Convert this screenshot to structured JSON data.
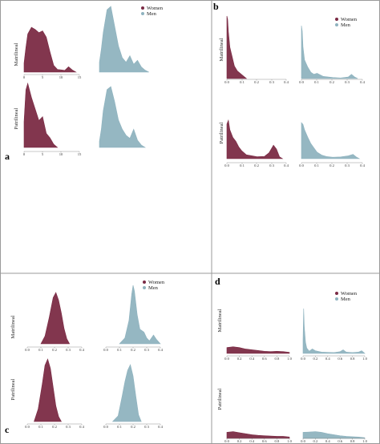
{
  "colors": {
    "women": "#7b2b45",
    "men": "#8fb3bf",
    "frame": "#9a9a9a"
  },
  "chart_data": [
    {
      "panel": "a",
      "type": "area",
      "legend": {
        "entries": [
          "Women",
          "Men"
        ],
        "placement": "top-right"
      },
      "rows": [
        "Matrilineal",
        "Patrilineal"
      ],
      "x_ticks": [
        "0",
        "5",
        "10",
        "15"
      ],
      "xlim": [
        0,
        16
      ],
      "plots": [
        {
          "row": "Matrilineal",
          "series": "Women",
          "x": [
            0,
            0.5,
            1,
            2,
            3,
            4,
            5,
            6,
            7,
            8,
            9,
            10,
            11,
            12,
            13,
            14
          ],
          "y": [
            0.2,
            0.55,
            0.85,
            1.0,
            0.95,
            0.88,
            0.92,
            0.78,
            0.45,
            0.15,
            0.06,
            0.05,
            0.04,
            0.12,
            0.05,
            0.0
          ]
        },
        {
          "row": "Matrilineal",
          "series": "Men",
          "x": [
            0,
            0.5,
            1,
            2,
            3,
            4,
            5,
            6,
            7,
            8,
            9,
            10,
            11,
            12,
            13
          ],
          "y": [
            0.15,
            0.35,
            0.6,
            0.95,
            1.0,
            0.7,
            0.4,
            0.22,
            0.15,
            0.25,
            0.12,
            0.18,
            0.08,
            0.03,
            0.0
          ]
        },
        {
          "row": "Patrilineal",
          "series": "Women",
          "x": [
            0,
            0.5,
            1,
            2,
            3,
            4,
            5,
            6,
            7,
            8,
            9
          ],
          "y": [
            0.4,
            0.9,
            1.0,
            0.78,
            0.6,
            0.42,
            0.48,
            0.22,
            0.15,
            0.05,
            0.0
          ]
        },
        {
          "row": "Patrilineal",
          "series": "Men",
          "x": [
            0,
            0.5,
            1,
            2,
            3,
            4,
            5,
            6,
            7,
            8,
            9,
            10,
            11,
            12
          ],
          "y": [
            0.1,
            0.3,
            0.6,
            0.95,
            1.0,
            0.75,
            0.45,
            0.3,
            0.2,
            0.15,
            0.3,
            0.12,
            0.04,
            0.0
          ]
        }
      ]
    },
    {
      "panel": "b",
      "type": "area",
      "legend": {
        "entries": [
          "Women",
          "Men"
        ],
        "placement": "top-right"
      },
      "rows": [
        "Matrilineal",
        "Patrilineal"
      ],
      "x_ticks": [
        "0.0",
        "0.1",
        "0.2",
        "0.3",
        "0.4"
      ],
      "xlim": [
        0,
        0.4
      ],
      "plots": [
        {
          "row": "Matrilineal",
          "series": "Women",
          "x": [
            0,
            0.005,
            0.01,
            0.02,
            0.03,
            0.05,
            0.07,
            0.09,
            0.11,
            0.13
          ],
          "y": [
            1.0,
            0.95,
            0.75,
            0.5,
            0.4,
            0.2,
            0.12,
            0.08,
            0.04,
            0.0
          ]
        },
        {
          "row": "Matrilineal",
          "series": "Men",
          "x": [
            0,
            0.005,
            0.01,
            0.02,
            0.04,
            0.06,
            0.08,
            0.1,
            0.14,
            0.2,
            0.25,
            0.3,
            0.32,
            0.34,
            0.36
          ],
          "y": [
            1.0,
            0.9,
            0.6,
            0.35,
            0.22,
            0.12,
            0.08,
            0.1,
            0.04,
            0.02,
            0.01,
            0.03,
            0.08,
            0.03,
            0.0
          ]
        },
        {
          "row": "Patrilineal",
          "series": "Women",
          "x": [
            0,
            0.01,
            0.02,
            0.04,
            0.06,
            0.08,
            0.1,
            0.13,
            0.16,
            0.2,
            0.25,
            0.28,
            0.31,
            0.33,
            0.35,
            0.37
          ],
          "y": [
            0.9,
            1.0,
            0.75,
            0.55,
            0.45,
            0.3,
            0.2,
            0.1,
            0.08,
            0.05,
            0.06,
            0.15,
            0.35,
            0.25,
            0.05,
            0.0
          ]
        },
        {
          "row": "Patrilineal",
          "series": "Men",
          "x": [
            0,
            0.01,
            0.02,
            0.04,
            0.06,
            0.08,
            0.1,
            0.13,
            0.16,
            0.2,
            0.25,
            0.3,
            0.33,
            0.35,
            0.37
          ],
          "y": [
            1.0,
            0.95,
            0.8,
            0.6,
            0.42,
            0.3,
            0.18,
            0.1,
            0.06,
            0.04,
            0.05,
            0.08,
            0.12,
            0.05,
            0.0
          ]
        }
      ]
    },
    {
      "panel": "c",
      "type": "area",
      "legend": {
        "entries": [
          "Women",
          "Men"
        ],
        "placement": "top-right"
      },
      "rows": [
        "Matrilineal",
        "Patrilineal"
      ],
      "x_ticks": [
        "0.0",
        "0.1",
        "0.2",
        "0.3",
        "0.4"
      ],
      "xlim": [
        0,
        0.4
      ],
      "plots": [
        {
          "row": "Matrilineal",
          "series": "Women",
          "x": [
            0.1,
            0.13,
            0.16,
            0.19,
            0.21,
            0.23,
            0.25,
            0.27,
            0.29,
            0.31
          ],
          "y": [
            0.0,
            0.15,
            0.5,
            0.9,
            1.0,
            0.85,
            0.6,
            0.3,
            0.1,
            0.0
          ]
        },
        {
          "row": "Matrilineal",
          "series": "Men",
          "x": [
            0.1,
            0.14,
            0.17,
            0.19,
            0.2,
            0.21,
            0.23,
            0.25,
            0.28,
            0.3,
            0.32,
            0.35,
            0.37,
            0.4
          ],
          "y": [
            0.0,
            0.1,
            0.4,
            0.85,
            1.0,
            0.9,
            0.5,
            0.25,
            0.2,
            0.1,
            0.05,
            0.15,
            0.08,
            0.0
          ]
        },
        {
          "row": "Patrilineal",
          "series": "Women",
          "x": [
            0.05,
            0.08,
            0.11,
            0.13,
            0.15,
            0.17,
            0.19,
            0.21,
            0.23,
            0.25
          ],
          "y": [
            0.0,
            0.2,
            0.6,
            0.9,
            1.0,
            0.85,
            0.55,
            0.25,
            0.08,
            0.0
          ]
        },
        {
          "row": "Patrilineal",
          "series": "Men",
          "x": [
            0.05,
            0.09,
            0.12,
            0.14,
            0.16,
            0.18,
            0.2,
            0.22,
            0.24,
            0.26
          ],
          "y": [
            0.0,
            0.1,
            0.45,
            0.7,
            0.9,
            1.0,
            0.8,
            0.45,
            0.12,
            0.0
          ]
        }
      ]
    },
    {
      "panel": "d",
      "type": "area",
      "legend": {
        "entries": [
          "Women",
          "Men"
        ],
        "placement": "top-right"
      },
      "rows": [
        "Matrilineal",
        "Patrilineal"
      ],
      "x_ticks": [
        "0.0",
        "0.2",
        "0.4",
        "0.6",
        "0.8",
        "1.0"
      ],
      "xlim": [
        0,
        1
      ],
      "plots": [
        {
          "row": "Matrilineal",
          "series": "Women",
          "x": [
            0,
            0.1,
            0.2,
            0.3,
            0.4,
            0.5,
            0.6,
            0.7,
            0.8,
            0.9,
            1.0
          ],
          "y": [
            0.16,
            0.18,
            0.16,
            0.12,
            0.1,
            0.08,
            0.06,
            0.05,
            0.06,
            0.05,
            0.03
          ]
        },
        {
          "row": "Matrilineal",
          "series": "Men",
          "x": [
            0,
            0.01,
            0.02,
            0.04,
            0.06,
            0.1,
            0.15,
            0.2,
            0.3,
            0.5,
            0.6,
            0.65,
            0.7,
            0.8,
            0.9,
            0.95,
            1.0
          ],
          "y": [
            0.3,
            1.0,
            0.6,
            0.25,
            0.12,
            0.05,
            0.1,
            0.06,
            0.03,
            0.02,
            0.04,
            0.08,
            0.03,
            0.02,
            0.03,
            0.06,
            0.0
          ]
        },
        {
          "row": "Patrilineal",
          "series": "Women",
          "x": [
            0,
            0.1,
            0.2,
            0.3,
            0.4,
            0.5,
            0.6,
            0.7,
            0.8,
            0.9,
            1.0
          ],
          "y": [
            0.18,
            0.2,
            0.17,
            0.14,
            0.11,
            0.09,
            0.08,
            0.07,
            0.06,
            0.06,
            0.04
          ]
        },
        {
          "row": "Patrilineal",
          "series": "Men",
          "x": [
            0,
            0.1,
            0.2,
            0.3,
            0.4,
            0.5,
            0.6,
            0.7,
            0.8,
            0.9,
            1.0
          ],
          "y": [
            0.18,
            0.19,
            0.2,
            0.18,
            0.14,
            0.11,
            0.08,
            0.06,
            0.05,
            0.04,
            0.02
          ]
        }
      ]
    }
  ]
}
